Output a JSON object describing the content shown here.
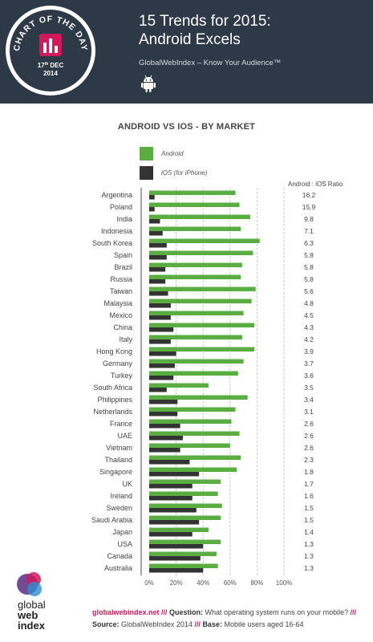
{
  "header": {
    "title_line1": "15 Trends for 2015:",
    "title_line2": "Android Excels",
    "subtitle": "GlobalWebIndex – Know Your Audience™",
    "badge": {
      "line1": "CHART OF THE DAY",
      "date_day": "17",
      "date_suffix": "th",
      "date_month": "DEC",
      "date_year": "2014"
    },
    "icon": "android-icon"
  },
  "colors": {
    "header_bg": "#2e3947",
    "android": "#5aae41",
    "ios": "#333333",
    "accent_pink": "#d1185b"
  },
  "chart_data": {
    "type": "bar",
    "orientation": "horizontal",
    "title": "ANDROID VS IOS - BY MARKET",
    "ratio_header": "Android : iOS Ratio",
    "categories": [
      "Argentina",
      "Poland",
      "India",
      "Indonesia",
      "South Korea",
      "Spain",
      "Brazil",
      "Russia",
      "Taiwan",
      "Malaysia",
      "Mexico",
      "China",
      "Italy",
      "Hong Kong",
      "Germany",
      "Turkey",
      "South Africa",
      "Philippines",
      "Netherlands",
      "France",
      "UAE",
      "Vietnam",
      "Thailand",
      "Singapore",
      "UK",
      "Ireland",
      "Sweden",
      "Saudi Arabia",
      "Japan",
      "USA",
      "Canada",
      "Australia"
    ],
    "series": [
      {
        "name": "Android",
        "color": "#5aae41",
        "values": [
          64,
          67,
          75,
          68,
          82,
          77,
          69,
          68,
          79,
          76,
          70,
          78,
          69,
          78,
          70,
          66,
          44,
          73,
          64,
          61,
          67,
          60,
          68,
          65,
          53,
          51,
          54,
          53,
          44,
          53,
          50,
          51
        ]
      },
      {
        "name": "iOS (for iPhone)",
        "color": "#333333",
        "values": [
          4,
          4,
          8,
          10,
          13,
          13,
          12,
          12,
          14,
          16,
          16,
          18,
          16,
          20,
          19,
          18,
          13,
          21,
          21,
          23,
          25,
          23,
          30,
          37,
          32,
          32,
          35,
          37,
          32,
          40,
          38,
          40
        ]
      }
    ],
    "ratios": [
      "16.2",
      "15.9",
      "9.8",
      "7.1",
      "6.3",
      "5.8",
      "5.8",
      "5.8",
      "5.6",
      "4.8",
      "4.5",
      "4.3",
      "4.2",
      "3.9",
      "3.7",
      "3.6",
      "3.5",
      "3.4",
      "3.1",
      "2.6",
      "2.6",
      "2.6",
      "2.3",
      "1.8",
      "1.7",
      "1.6",
      "1.5",
      "1.5",
      "1.4",
      "1.3",
      "1.3",
      "1.3"
    ],
    "xlim": [
      0,
      100
    ],
    "xticks": [
      "0%",
      "20%",
      "40%",
      "60%",
      "80%",
      "100%"
    ],
    "grid": "dashed vertical at 20% intervals",
    "legend": "top-left"
  },
  "footer": {
    "logo_line1": "global",
    "logo_line2": "web",
    "logo_line3": "index",
    "site": "globalwebindex.net",
    "sep1": " /// ",
    "q_label": "Question:",
    "q_text": " What operating system runs on your mobile?",
    "sep2": " /// ",
    "s_label": "Source:",
    "s_text": " GlobalWebIndex 2014",
    "sep3": " /// ",
    "b_label": "Base:",
    "b_text": " Mobile users aged 16-64"
  }
}
